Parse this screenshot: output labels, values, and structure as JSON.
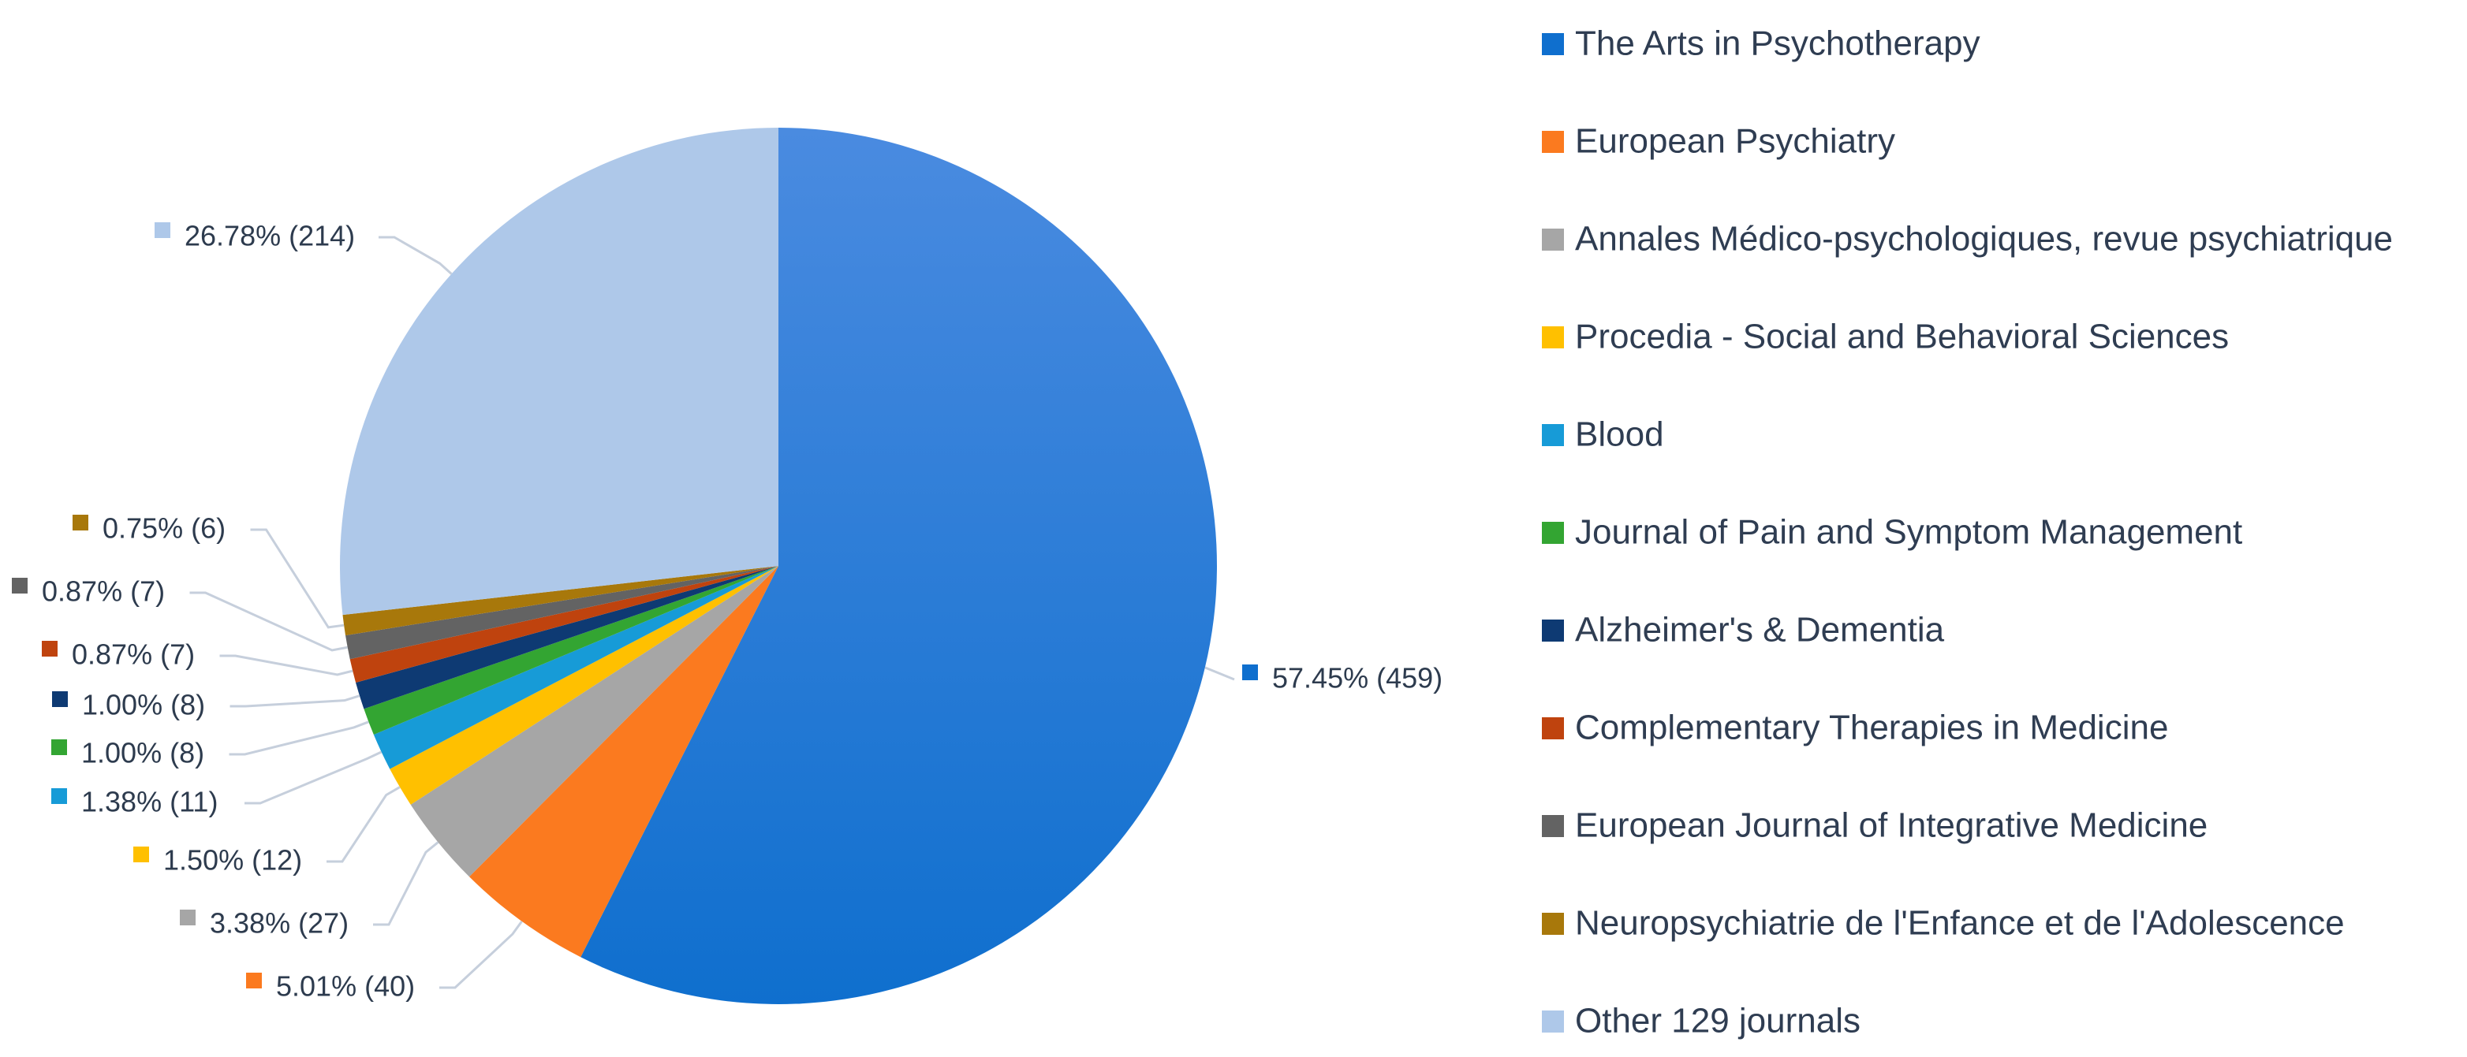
{
  "chart_data": {
    "type": "pie",
    "title": "",
    "series": [
      {
        "slices": [
          {
            "name": "The Arts in Psychotherapy",
            "percent": 57.45,
            "count": 459,
            "label": "57.45% (459)",
            "color": "#0f6fce"
          },
          {
            "name": "European Psychiatry",
            "percent": 5.01,
            "count": 40,
            "label": "5.01% (40)",
            "color": "#fb7a1f"
          },
          {
            "name": "Annales Médico-psychologiques, revue psychiatrique",
            "percent": 3.38,
            "count": 27,
            "label": "3.38% (27)",
            "color": "#a6a6a6"
          },
          {
            "name": "Procedia - Social and Behavioral Sciences",
            "percent": 1.5,
            "count": 12,
            "label": "1.50% (12)",
            "color": "#ffc000"
          },
          {
            "name": "Blood",
            "percent": 1.38,
            "count": 11,
            "label": "1.38% (11)",
            "color": "#179bd7"
          },
          {
            "name": "Journal of Pain and Symptom Management",
            "percent": 1.0,
            "count": 8,
            "label": "1.00% (8)",
            "color": "#33a532"
          },
          {
            "name": "Alzheimer's & Dementia",
            "percent": 1.0,
            "count": 8,
            "label": "1.00% (8)",
            "color": "#0e3a73"
          },
          {
            "name": "Complementary Therapies in Medicine",
            "percent": 0.87,
            "count": 7,
            "label": "0.87% (7)",
            "color": "#bf430e"
          },
          {
            "name": "European Journal of Integrative Medicine",
            "percent": 0.87,
            "count": 7,
            "label": "0.87% (7)",
            "color": "#636363"
          },
          {
            "name": "Neuropsychiatrie de l'Enfance et de l'Adolescence",
            "percent": 0.75,
            "count": 6,
            "label": "0.75% (6)",
            "color": "#a8780b"
          },
          {
            "name": "Other 129 journals",
            "percent": 26.78,
            "count": 214,
            "label": "26.78% (214)",
            "color": "#aec8e9"
          }
        ]
      }
    ],
    "legend": {
      "position": "right",
      "items": [
        "The Arts in Psychotherapy",
        "European Psychiatry",
        "Annales Médico-psychologiques, revue psychiatrique",
        "Procedia - Social and Behavioral Sciences",
        "Blood",
        "Journal of Pain and Symptom Management",
        "Alzheimer's & Dementia",
        "Complementary Therapies in Medicine",
        "European Journal of Integrative Medicine",
        "Neuropsychiatrie de l'Enfance et de l'Adolescence",
        "Other 129 journals"
      ]
    },
    "start_angle": "12 o'clock",
    "direction": "clockwise"
  }
}
